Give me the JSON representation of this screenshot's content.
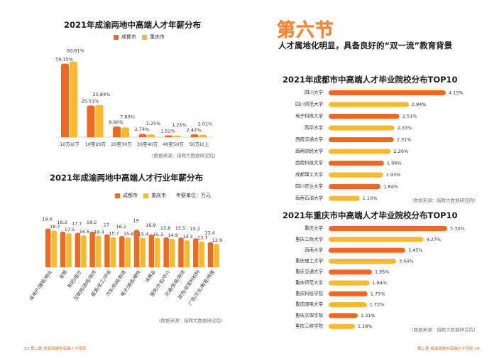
{
  "left": {
    "salary_chart": {
      "title": "2021年成渝两地中高端人才年薪分布",
      "legend": [
        "成都市",
        "重庆市"
      ],
      "source": "(数据来源：猎聘大数据研究院)"
    },
    "industry_chart": {
      "title": "2021年成渝两地中高端人才行业年薪分布",
      "legend": [
        "成都市",
        "重庆市"
      ],
      "unit_label": "年薪单位：万元",
      "source": "(数据来源：猎聘大数据研究院)"
    },
    "footer": "23   第二章  成渝双城中高端人才现状"
  },
  "right": {
    "section_heading": "第六节",
    "section_subtitle": "人才属地化明显，具备良好的“双一流”教育背景",
    "chengdu_chart": {
      "title": "2021年成都市中高端人才毕业院校分布TOP10",
      "source": "(数据来源：猎聘大数据研究院)"
    },
    "chongqing_chart": {
      "title": "2021年重庆市中高端人才毕业院校分布TOP10",
      "source": "(数据来源：猎聘大数据研究院)"
    },
    "footer": "第二章  成渝双城中高端人才现状  24"
  },
  "colors": {
    "chengdu": "#ee6a22",
    "chongqing": "#f7b92e",
    "accent": "#f08a3a"
  },
  "chart_data": [
    {
      "type": "bar",
      "title": "2021年成渝两地中高端人才年薪分布",
      "categories": [
        "10万以下",
        "10至20万",
        "20至30万",
        "30至40万",
        "40至50万",
        "50万以上"
      ],
      "series": [
        {
          "name": "成都市",
          "values": [
            59.15,
            25.51,
            8.66,
            2.74,
            1.52,
            2.42
          ]
        },
        {
          "name": "重庆市",
          "values": [
            60.81,
            25.84,
            7.83,
            2.25,
            1.25,
            2.01
          ]
        }
      ],
      "value_format": "%",
      "grid": false,
      "legend_position": "top"
    },
    {
      "type": "bar",
      "title": "2021年成渝两地中高端人才行业年薪分布",
      "categories": [
        "房地产/建筑/物业",
        "金融",
        "制药/医疗",
        "互联网/游戏/软件",
        "能源/化工/环保",
        "汽车/机械/制造",
        "电子/通信/硬件",
        "消费品",
        "服务/外包/中介",
        "交通/贸易/物流",
        "政府/非营利机构",
        "广告/文化/教育/传媒"
      ],
      "series": [
        {
          "name": "成都市",
          "values": [
            19.6,
            18.2,
            17.7,
            18.2,
            17.0,
            16.2,
            19.0,
            16.9,
            15.6,
            15.5,
            15.2,
            13.4
          ]
        },
        {
          "name": "重庆市",
          "values": [
            18.7,
            17.5,
            16.5,
            16.4,
            15.7,
            15.6,
            15.4,
            15.3,
            14.9,
            14.3,
            13.7,
            12.6
          ]
        }
      ],
      "grid": false,
      "legend_position": "top"
    },
    {
      "type": "bar",
      "orientation": "horizontal",
      "title": "2021年成都市中高端人才毕业院校分布TOP10",
      "categories": [
        "四川大学",
        "四川师范大学",
        "电子科技大学",
        "西华大学",
        "西南交通大学",
        "西南财经大学",
        "西南科技大学",
        "成都理工大学",
        "四川农业大学",
        "西南石油大学"
      ],
      "values": [
        4.15,
        2.84,
        2.51,
        2.33,
        2.31,
        2.2,
        1.96,
        1.93,
        1.84,
        1.1
      ],
      "value_format": "%"
    },
    {
      "type": "bar",
      "orientation": "horizontal",
      "title": "2021年重庆市中高端人才毕业院校分布TOP10",
      "categories": [
        "重庆大学",
        "重庆工商大学",
        "西南大学",
        "重庆理工大学",
        "重庆交通大学",
        "重庆师范大学",
        "重庆科技学院",
        "重庆邮电大学",
        "重庆文理学院",
        "重庆三峡学院"
      ],
      "values": [
        5.34,
        4.27,
        3.45,
        3.04,
        1.95,
        1.84,
        1.75,
        1.72,
        1.31,
        1.18
      ],
      "value_format": "%"
    }
  ]
}
